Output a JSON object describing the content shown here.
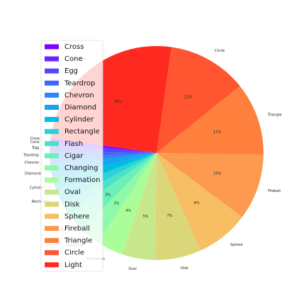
{
  "chart_data": {
    "type": "pie",
    "categories": [
      "Cross",
      "Cone",
      "Egg",
      "Teardrop",
      "Chevron",
      "Diamond",
      "Cylinder",
      "Rectangle",
      "Flash",
      "Cigar",
      "Changing",
      "Formation",
      "Oval",
      "Disk",
      "Sphere",
      "Fireball",
      "Triangle",
      "Circle",
      "Light"
    ],
    "values": [
      0.5,
      0.5,
      1,
      1,
      1,
      2,
      2,
      2,
      2,
      3,
      3,
      4,
      5,
      7,
      8,
      10,
      11,
      12,
      25
    ],
    "value_labels": [
      null,
      null,
      null,
      null,
      null,
      null,
      null,
      null,
      null,
      "3%",
      "3%",
      "4%",
      "5%",
      "7%",
      "8%",
      "10%",
      "11%",
      "12%",
      "25%"
    ],
    "colors": [
      "#7f00ff",
      "#6a23fe",
      "#5546fd",
      "#3f68f9",
      "#2a87f4",
      "#15a4ed",
      "#00bde4",
      "#2ad2da",
      "#4ae3c9",
      "#6af0b8",
      "#8ef9a8",
      "#aafe98",
      "#c8e68c",
      "#dcd67a",
      "#f7be64",
      "#fc9a50",
      "#ff7f3c",
      "#ff5530",
      "#ff2a1f"
    ],
    "startangle": 172,
    "legend": "upper left"
  }
}
